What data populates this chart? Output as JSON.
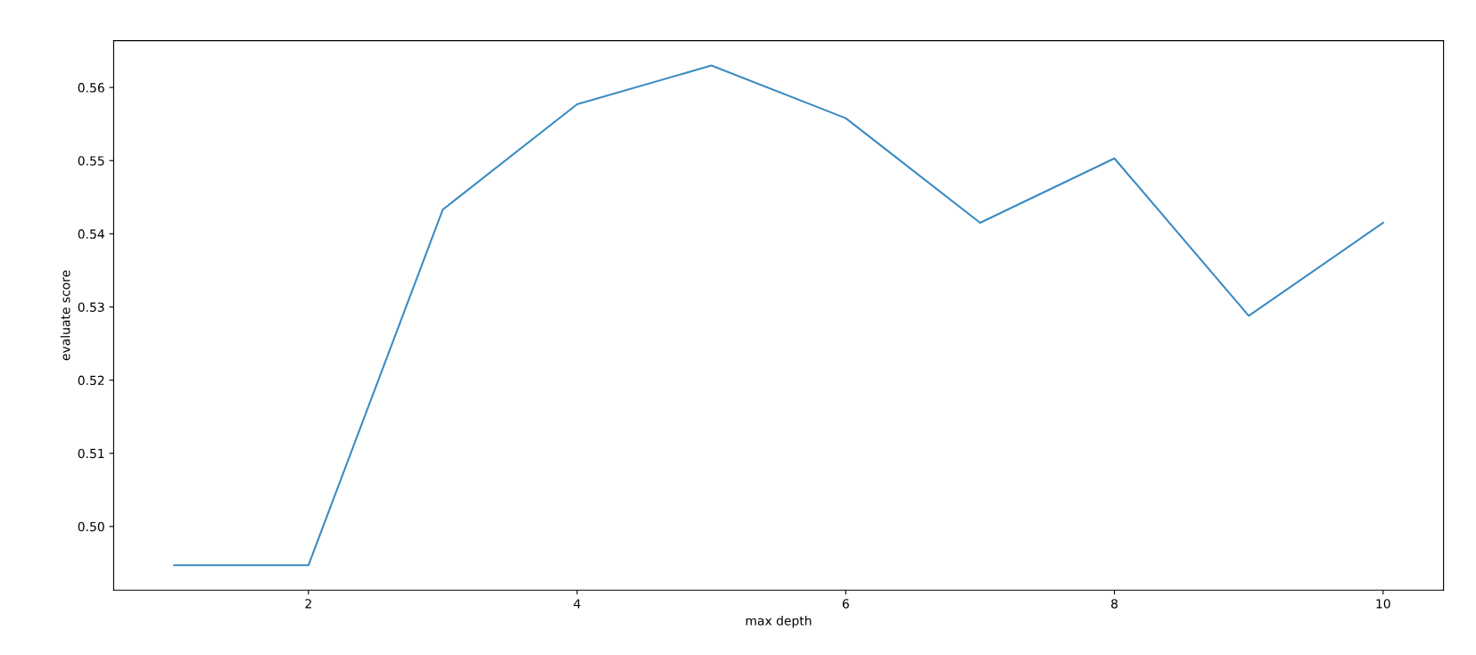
{
  "chart_data": {
    "type": "line",
    "xlabel": "max depth",
    "ylabel": "evaluate score",
    "x": [
      1,
      2,
      3,
      4,
      5,
      6,
      7,
      8,
      9,
      10
    ],
    "series": [
      {
        "color": "#3b8bc2",
        "values": [
          0.4947,
          0.4947,
          0.5433,
          0.5577,
          0.563,
          0.5558,
          0.5415,
          0.5503,
          0.5288,
          0.5415
        ]
      }
    ],
    "xlim": [
      0.55,
      10.45
    ],
    "ylim": [
      0.4913,
      0.5664
    ],
    "xticks": [
      2,
      4,
      6,
      8,
      10
    ],
    "yticks": [
      {
        "value": 0.5,
        "label": "0.50"
      },
      {
        "value": 0.51,
        "label": "0.51"
      },
      {
        "value": 0.52,
        "label": "0.52"
      },
      {
        "value": 0.53,
        "label": "0.53"
      },
      {
        "value": 0.54,
        "label": "0.54"
      },
      {
        "value": 0.55,
        "label": "0.55"
      },
      {
        "value": 0.56,
        "label": "0.56"
      }
    ],
    "grid": false,
    "marker": "none",
    "line_style": "solid"
  }
}
